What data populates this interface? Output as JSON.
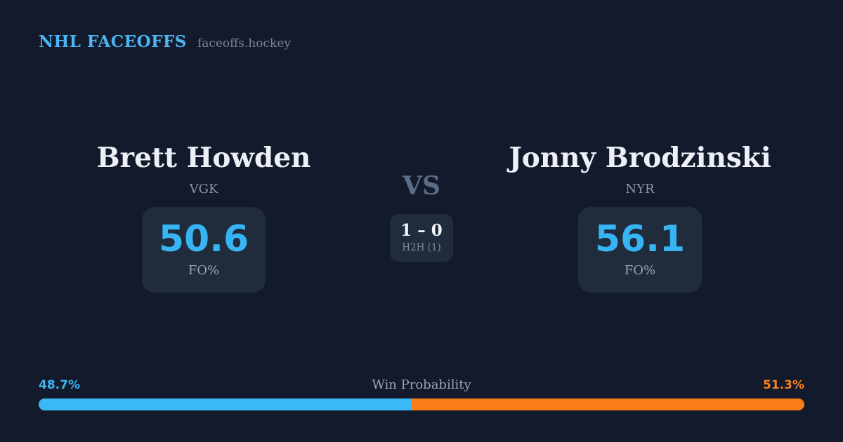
{
  "header": {
    "brand": "NHL FACEOFFS",
    "site": "faceoffs.hockey"
  },
  "matchup": {
    "vs_label": "VS",
    "h2h": {
      "score": "1 – 0",
      "label": "H2H (1)"
    },
    "players": [
      {
        "name": "Brett Howden",
        "team": "VGK",
        "fo_pct": "50.6",
        "stat_label": "FO%"
      },
      {
        "name": "Jonny Brodzinski",
        "team": "NYR",
        "fo_pct": "56.1",
        "stat_label": "FO%"
      }
    ]
  },
  "win_probability": {
    "title": "Win Probability",
    "left_pct_label": "48.7%",
    "right_pct_label": "51.3%",
    "left_value": 48.7,
    "right_value": 51.3
  },
  "colors": {
    "background": "#121a2b",
    "card": "#202b3b",
    "accent_blue": "#39b9f5",
    "accent_orange": "#f87d16",
    "text_primary": "#edf1f7",
    "text_muted": "#8a94a6"
  }
}
